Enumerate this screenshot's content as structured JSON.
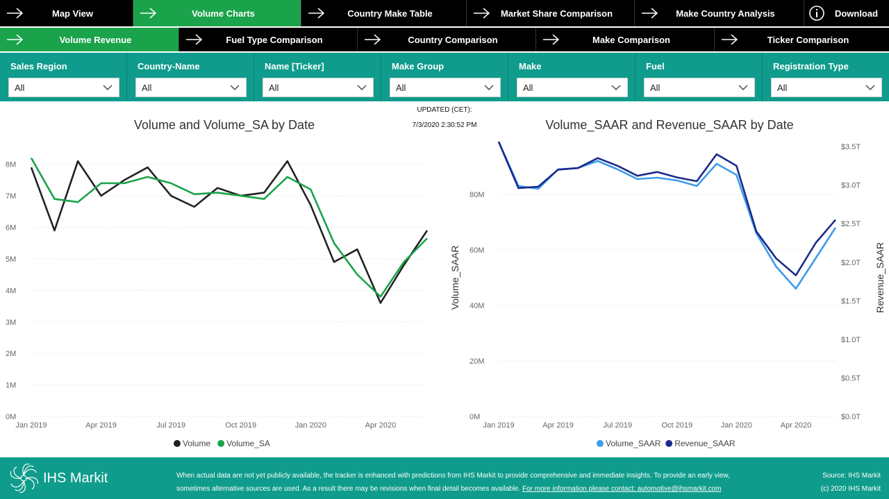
{
  "nav_primary": [
    {
      "label": "Map View",
      "active": false
    },
    {
      "label": "Volume Charts",
      "active": true
    },
    {
      "label": "Country Make Table",
      "active": false
    },
    {
      "label": "Market Share Comparison",
      "active": false
    },
    {
      "label": "Make Country Analysis",
      "active": false
    }
  ],
  "download_label": "Download",
  "nav_secondary": [
    {
      "label": "Volume Revenue",
      "active": true
    },
    {
      "label": "Fuel Type Comparison",
      "active": false
    },
    {
      "label": "Country Comparison",
      "active": false
    },
    {
      "label": "Make Comparison",
      "active": false
    },
    {
      "label": "Ticker Comparison",
      "active": false
    }
  ],
  "filters": [
    {
      "label": "Sales Region",
      "value": "All"
    },
    {
      "label": "Country-Name",
      "value": "All"
    },
    {
      "label": "Name [Ticker]",
      "value": "All"
    },
    {
      "label": "Make Group",
      "value": "All"
    },
    {
      "label": "Make",
      "value": "All"
    },
    {
      "label": "Fuel",
      "value": "All"
    },
    {
      "label": "Registration Type",
      "value": "All"
    }
  ],
  "updated": {
    "label": "UPDATED (CET):",
    "value": "7/3/2020 2:30:52 PM"
  },
  "colors": {
    "nav_bg": "#000000",
    "nav_active": "#1aa34a",
    "filter_bg": "#0f9c8c",
    "footer_bg": "#0f9c8c"
  },
  "chart_data": [
    {
      "type": "line",
      "title": "Volume and Volume_SA by Date",
      "x": [
        "2019-01",
        "2019-02",
        "2019-03",
        "2019-04",
        "2019-05",
        "2019-06",
        "2019-07",
        "2019-08",
        "2019-09",
        "2019-10",
        "2019-11",
        "2019-12",
        "2020-01",
        "2020-02",
        "2020-03",
        "2020-04",
        "2020-05",
        "2020-06"
      ],
      "x_ticks": [
        "Jan 2019",
        "Apr 2019",
        "Jul 2019",
        "Oct 2019",
        "Jan 2020",
        "Apr 2020"
      ],
      "y_ticks": [
        "0M",
        "1M",
        "2M",
        "3M",
        "4M",
        "5M",
        "6M",
        "7M",
        "8M"
      ],
      "ylim": [
        0,
        8.5
      ],
      "series": [
        {
          "name": "Volume",
          "color": "#222222",
          "values": [
            7.9,
            5.9,
            8.1,
            7.0,
            7.5,
            7.9,
            7.0,
            6.65,
            7.25,
            7.0,
            7.1,
            8.1,
            6.7,
            4.9,
            5.3,
            3.6,
            4.8,
            5.9
          ]
        },
        {
          "name": "Volume_SA",
          "color": "#1aa34a",
          "values": [
            8.2,
            6.9,
            6.8,
            7.4,
            7.4,
            7.6,
            7.4,
            7.05,
            7.1,
            7.0,
            6.9,
            7.6,
            7.2,
            5.5,
            4.5,
            3.8,
            4.9,
            5.65
          ]
        }
      ],
      "legend": "bottom"
    },
    {
      "type": "line",
      "title": "Volume_SAAR and Revenue_SAAR by Date",
      "ylabel": "Volume_SAAR",
      "y2label": "Revenue_SAAR",
      "x": [
        "2019-01",
        "2019-02",
        "2019-03",
        "2019-04",
        "2019-05",
        "2019-06",
        "2019-07",
        "2019-08",
        "2019-09",
        "2019-10",
        "2019-11",
        "2019-12",
        "2020-01",
        "2020-02",
        "2020-03",
        "2020-04",
        "2020-05",
        "2020-06"
      ],
      "x_ticks": [
        "Jan 2019",
        "Apr 2019",
        "Jul 2019",
        "Oct 2019",
        "Jan 2020",
        "Apr 2020"
      ],
      "y_ticks": [
        "0M",
        "20M",
        "40M",
        "60M",
        "80M"
      ],
      "y2_ticks": [
        "$0.0T",
        "$0.5T",
        "$1.0T",
        "$1.5T",
        "$2.0T",
        "$2.5T",
        "$3.0T",
        "$3.5T"
      ],
      "ylim": [
        0,
        100
      ],
      "y2lim": [
        0,
        3.6
      ],
      "series": [
        {
          "name": "Volume_SAAR",
          "color": "#3d9be9",
          "axis": "left",
          "values": [
            99,
            83,
            82,
            89,
            89.5,
            92,
            89,
            85.5,
            86,
            85,
            83,
            91,
            87,
            66,
            54,
            46,
            57,
            68
          ]
        },
        {
          "name": "Revenue_SAAR",
          "color": "#1a2a8c",
          "axis": "right",
          "values": [
            3.56,
            2.96,
            2.98,
            3.2,
            3.22,
            3.35,
            3.25,
            3.12,
            3.17,
            3.1,
            3.05,
            3.4,
            3.25,
            2.4,
            2.05,
            1.83,
            2.25,
            2.55
          ]
        }
      ],
      "legend": "bottom"
    }
  ],
  "footer": {
    "logo_text": "IHS Markit",
    "text_line1": "When actual data are not yet publicly available, the tracker is enhanced with predictions from IHS Markit to provide comprehensive and immediate insights. To provide an early view,",
    "text_line2": "sometimes alternative sources are used. As a result there may be revisions when final detail becomes available.",
    "link": "For more information please contact: automotive@ihsmarkit.com",
    "source": "Source: IHS Markit",
    "copyright": "(c) 2020 IHS Markit"
  }
}
